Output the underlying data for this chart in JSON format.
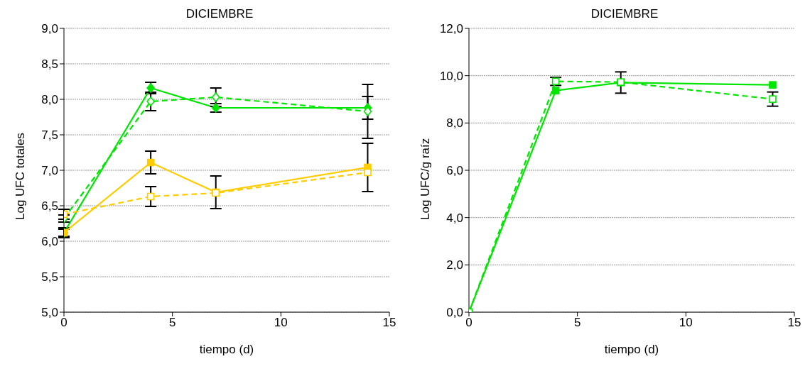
{
  "chart_data": [
    {
      "type": "line",
      "title": "DICIEMBRE",
      "xlabel": "tiempo (d)",
      "ylabel": "Log UFC totales",
      "xlim": [
        0,
        15
      ],
      "xticks": [
        0,
        5,
        10,
        15
      ],
      "ylim": [
        5,
        9
      ],
      "yticks": [
        {
          "value": 5,
          "label": "5,0"
        },
        {
          "value": 5.5,
          "label": "5,5"
        },
        {
          "value": 6,
          "label": "6,0"
        },
        {
          "value": 6.5,
          "label": "6,5"
        },
        {
          "value": 7,
          "label": "7,0"
        },
        {
          "value": 7.5,
          "label": "7,5"
        },
        {
          "value": 8,
          "label": "8,0"
        },
        {
          "value": 8.5,
          "label": "8,5"
        },
        {
          "value": 9,
          "label": "9,0"
        }
      ],
      "grid": "y",
      "legend": false,
      "x": [
        0,
        4,
        7,
        14
      ],
      "series": [
        {
          "color": "#00e600",
          "marker": "diamond",
          "line_style": "solid",
          "values": [
            6.12,
            8.16,
            7.88,
            7.88
          ],
          "errors": [
            0.07,
            0.08,
            0.06,
            0.16
          ]
        },
        {
          "color": "#00e600",
          "marker": "diamond",
          "line_style": "dashed",
          "values": [
            6.32,
            7.97,
            8.03,
            7.83
          ],
          "errors": [
            0.05,
            0.13,
            0.13,
            0.38
          ]
        },
        {
          "color": "#ffcc00",
          "marker": "square",
          "line_style": "solid",
          "values": [
            6.12,
            7.11,
            6.69,
            7.04
          ],
          "errors": [
            0.05,
            0.16,
            0.23,
            0.34
          ]
        },
        {
          "color": "#ffcc00",
          "marker": "square",
          "line_style": "dashed",
          "values": [
            6.38,
            6.63,
            6.68,
            6.97
          ],
          "errors": [
            0.07,
            0.14,
            null,
            null
          ]
        }
      ]
    },
    {
      "type": "line",
      "title": "DICIEMBRE",
      "xlabel": "tiempo (d)",
      "ylabel": "Log UFC/g raíz",
      "xlim": [
        0,
        15
      ],
      "xticks": [
        0,
        5,
        10,
        15
      ],
      "ylim": [
        0,
        12
      ],
      "yticks": [
        {
          "value": 0,
          "label": "0,0"
        },
        {
          "value": 2,
          "label": "2,0"
        },
        {
          "value": 4,
          "label": "4,0"
        },
        {
          "value": 6,
          "label": "6,0"
        },
        {
          "value": 8,
          "label": "8,0"
        },
        {
          "value": 10,
          "label": "10,0"
        },
        {
          "value": 12,
          "label": "12,0"
        }
      ],
      "grid": "y",
      "legend": false,
      "x": [
        0,
        4,
        7,
        14
      ],
      "series": [
        {
          "color": "#00e600",
          "marker": "square",
          "line_style": "solid",
          "values": [
            0,
            9.37,
            9.71,
            9.61
          ],
          "errors": [
            null,
            null,
            0.45,
            null
          ]
        },
        {
          "color": "#00e600",
          "marker": "square",
          "line_style": "dashed",
          "values": [
            0,
            9.76,
            9.73,
            9.01
          ],
          "errors": [
            null,
            0.17,
            null,
            0.3
          ]
        }
      ]
    }
  ]
}
